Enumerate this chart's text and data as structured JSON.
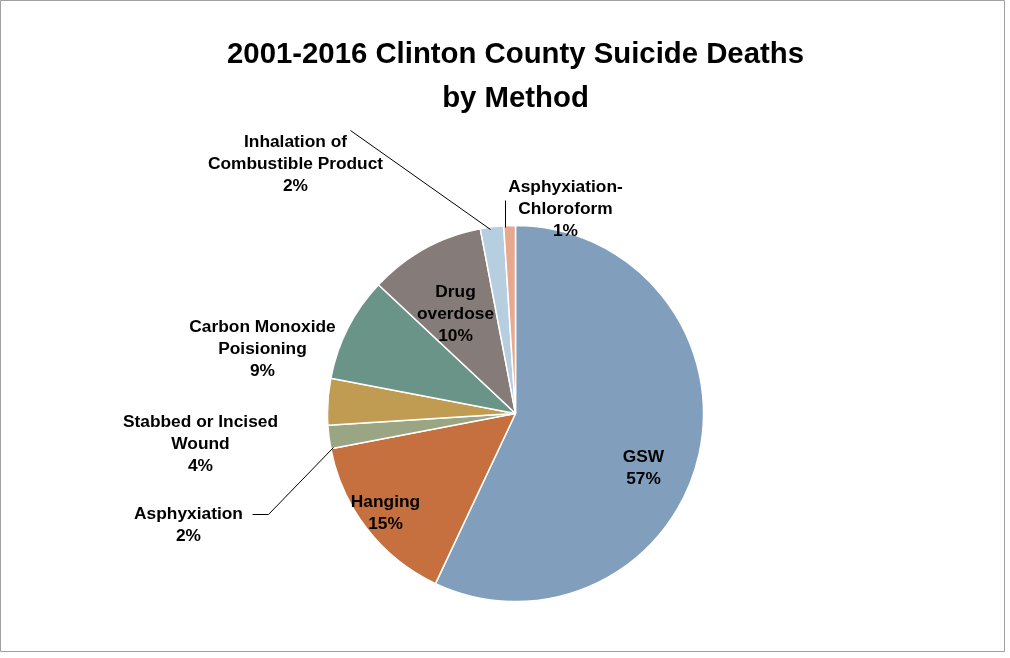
{
  "chart_data": {
    "type": "pie",
    "title": "2001-2016 Clinton County Suicide Deaths by Method",
    "categories": [
      "GSW",
      "Hanging",
      "Asphyxiation",
      "Stabbed or Incised Wound",
      "Carbon Monoxide Poisioning",
      "Drug overdose",
      "Inhalation of Combustible Product",
      "Asphyxiation-Chloroform"
    ],
    "values": [
      57,
      15,
      2,
      4,
      9,
      10,
      2,
      1
    ],
    "value_labels": [
      "57%",
      "15%",
      "2%",
      "4%",
      "9%",
      "10%",
      "2%",
      "1%"
    ],
    "colors": [
      "#819fbd",
      "#c5703e",
      "#9aa583",
      "#c09b52",
      "#6a9487",
      "#857b79",
      "#b7cde0",
      "#e6a98f"
    ]
  }
}
